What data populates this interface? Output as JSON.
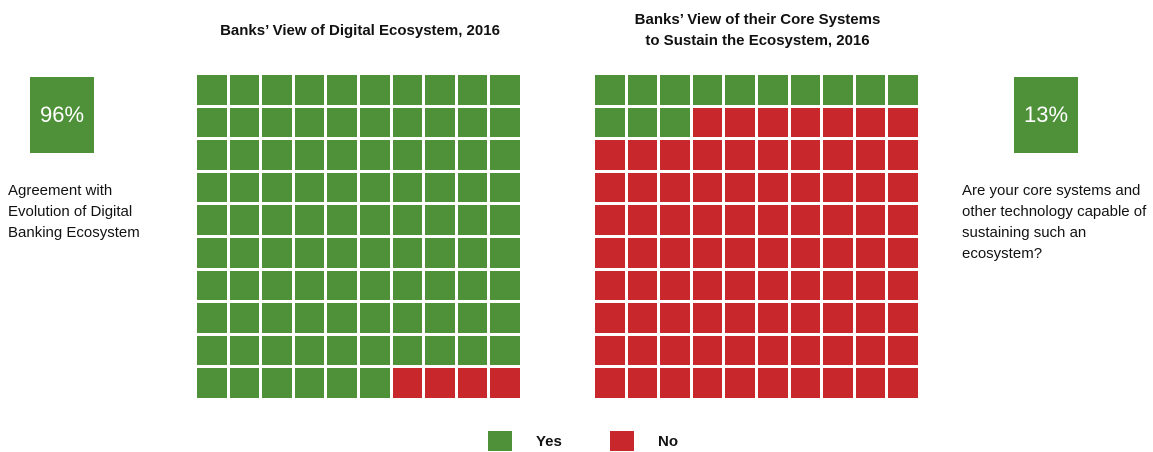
{
  "colors": {
    "yes": "#4e9139",
    "no": "#c8282b"
  },
  "left": {
    "title": "Banks’ View of Digital Ecosystem, 2016",
    "percent_label": "96%",
    "description": "Agreement with Evolution of Digital Banking Ecosystem"
  },
  "right": {
    "title": "Banks’ View of their Core Systems\nto Sustain the Ecosystem, 2016",
    "percent_label": "13%",
    "description": "Are your core systems and other technology capable of sustaining such an ecosystem?"
  },
  "legend": [
    {
      "label": "Yes",
      "color_key": "yes"
    },
    {
      "label": "No",
      "color_key": "no"
    }
  ],
  "chart_data": [
    {
      "type": "waffle",
      "title": "Banks’ View of Digital Ecosystem, 2016",
      "rows": 10,
      "cols": 10,
      "categories": [
        "Yes",
        "No"
      ],
      "values": [
        96,
        4
      ]
    },
    {
      "type": "waffle",
      "title": "Banks’ View of their Core Systems to Sustain the Ecosystem, 2016",
      "rows": 10,
      "cols": 10,
      "categories": [
        "Yes",
        "No"
      ],
      "values": [
        13,
        87
      ]
    }
  ]
}
